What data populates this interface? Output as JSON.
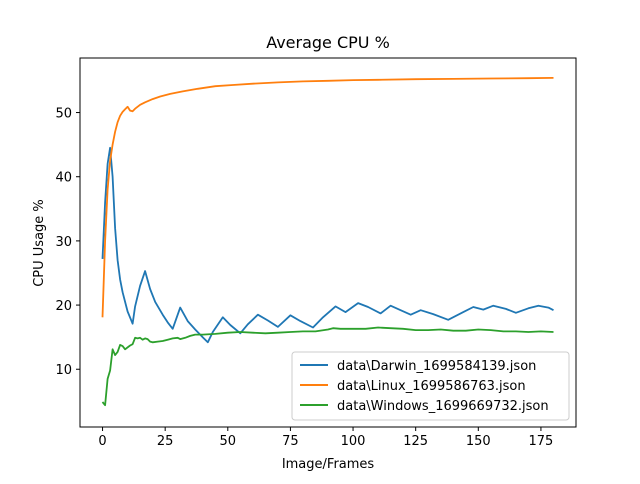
{
  "chart_data": {
    "type": "line",
    "title": "Average CPU %",
    "xlabel": "Image/Frames",
    "ylabel": "CPU Usage %",
    "xlim": [
      -9,
      189
    ],
    "ylim": [
      1.0,
      58.5
    ],
    "xticks": [
      0,
      25,
      50,
      75,
      100,
      125,
      150,
      175
    ],
    "yticks": [
      10,
      20,
      30,
      40,
      50
    ],
    "legend_loc": "lower right",
    "series": [
      {
        "name": "data\\Darwin_1699584139.json",
        "color": "#1f77b4",
        "points": [
          [
            0,
            27.2
          ],
          [
            1,
            36
          ],
          [
            2,
            42
          ],
          [
            3,
            44.5
          ],
          [
            4,
            40
          ],
          [
            5,
            32
          ],
          [
            6,
            27
          ],
          [
            7,
            24
          ],
          [
            8,
            22
          ],
          [
            9,
            20.5
          ],
          [
            10,
            19
          ],
          [
            12,
            17.1
          ],
          [
            13,
            19.8
          ],
          [
            15,
            23
          ],
          [
            17,
            25.3
          ],
          [
            19,
            22.5
          ],
          [
            21,
            20.5
          ],
          [
            24,
            18.5
          ],
          [
            26,
            17.3
          ],
          [
            28,
            16.3
          ],
          [
            31,
            19.6
          ],
          [
            34,
            17.5
          ],
          [
            37,
            16.2
          ],
          [
            40,
            15
          ],
          [
            42,
            14.2
          ],
          [
            44,
            15.8
          ],
          [
            48,
            18.1
          ],
          [
            51,
            16.9
          ],
          [
            55,
            15.6
          ],
          [
            58,
            17
          ],
          [
            62,
            18.5
          ],
          [
            66,
            17.6
          ],
          [
            70,
            16.6
          ],
          [
            75,
            18.4
          ],
          [
            79,
            17.5
          ],
          [
            84,
            16.5
          ],
          [
            88,
            18.1
          ],
          [
            93,
            19.8
          ],
          [
            97,
            18.9
          ],
          [
            102,
            20.3
          ],
          [
            106,
            19.7
          ],
          [
            111,
            18.7
          ],
          [
            115,
            19.9
          ],
          [
            119,
            19.2
          ],
          [
            123,
            18.5
          ],
          [
            127,
            19.2
          ],
          [
            132,
            18.6
          ],
          [
            138,
            17.7
          ],
          [
            144,
            18.9
          ],
          [
            148,
            19.7
          ],
          [
            152,
            19.3
          ],
          [
            156,
            19.9
          ],
          [
            161,
            19.4
          ],
          [
            165,
            18.8
          ],
          [
            170,
            19.5
          ],
          [
            174,
            19.9
          ],
          [
            178,
            19.6
          ],
          [
            180,
            19.2
          ]
        ]
      },
      {
        "name": "data\\Linux_1699586763.json",
        "color": "#ff7f0e",
        "points": [
          [
            0,
            18.1
          ],
          [
            1,
            30
          ],
          [
            2,
            38
          ],
          [
            3,
            42.5
          ],
          [
            4,
            45
          ],
          [
            5,
            47
          ],
          [
            6,
            48.5
          ],
          [
            7,
            49.5
          ],
          [
            8,
            50.1
          ],
          [
            9,
            50.5
          ],
          [
            10,
            50.9
          ],
          [
            11,
            50.3
          ],
          [
            12,
            50.2
          ],
          [
            13,
            50.6
          ],
          [
            15,
            51.2
          ],
          [
            17,
            51.6
          ],
          [
            20,
            52.1
          ],
          [
            23,
            52.5
          ],
          [
            27,
            52.9
          ],
          [
            32,
            53.3
          ],
          [
            38,
            53.7
          ],
          [
            45,
            54.1
          ],
          [
            52,
            54.3
          ],
          [
            60,
            54.5
          ],
          [
            70,
            54.7
          ],
          [
            80,
            54.85
          ],
          [
            90,
            54.95
          ],
          [
            100,
            55.05
          ],
          [
            110,
            55.1
          ],
          [
            125,
            55.2
          ],
          [
            140,
            55.25
          ],
          [
            155,
            55.3
          ],
          [
            170,
            55.35
          ],
          [
            180,
            55.4
          ]
        ]
      },
      {
        "name": "data\\Windows_1699669732.json",
        "color": "#2ca02c",
        "points": [
          [
            0,
            4.9
          ],
          [
            1,
            4.4
          ],
          [
            2,
            8.5
          ],
          [
            3,
            9.8
          ],
          [
            4,
            13.1
          ],
          [
            5,
            12.2
          ],
          [
            6,
            12.7
          ],
          [
            7,
            13.8
          ],
          [
            8,
            13.6
          ],
          [
            9,
            13.1
          ],
          [
            10,
            13.4
          ],
          [
            11,
            13.7
          ],
          [
            12,
            13.9
          ],
          [
            13,
            14.9
          ],
          [
            14,
            14.8
          ],
          [
            15,
            14.9
          ],
          [
            16,
            14.6
          ],
          [
            17,
            14.8
          ],
          [
            18,
            14.7
          ],
          [
            19,
            14.3
          ],
          [
            20,
            14.2
          ],
          [
            22,
            14.3
          ],
          [
            24,
            14.4
          ],
          [
            26,
            14.6
          ],
          [
            28,
            14.8
          ],
          [
            30,
            14.9
          ],
          [
            31,
            14.7
          ],
          [
            33,
            14.9
          ],
          [
            35,
            15.2
          ],
          [
            37,
            15.4
          ],
          [
            40,
            15.4
          ],
          [
            45,
            15.5
          ],
          [
            50,
            15.7
          ],
          [
            55,
            15.8
          ],
          [
            60,
            15.7
          ],
          [
            65,
            15.6
          ],
          [
            70,
            15.7
          ],
          [
            75,
            15.8
          ],
          [
            80,
            15.9
          ],
          [
            85,
            15.9
          ],
          [
            90,
            16.2
          ],
          [
            92,
            16.4
          ],
          [
            95,
            16.3
          ],
          [
            100,
            16.3
          ],
          [
            105,
            16.3
          ],
          [
            110,
            16.5
          ],
          [
            115,
            16.4
          ],
          [
            120,
            16.3
          ],
          [
            125,
            16.1
          ],
          [
            130,
            16.1
          ],
          [
            135,
            16.2
          ],
          [
            140,
            16.0
          ],
          [
            145,
            16.0
          ],
          [
            150,
            16.2
          ],
          [
            155,
            16.1
          ],
          [
            160,
            15.9
          ],
          [
            165,
            15.9
          ],
          [
            170,
            15.8
          ],
          [
            175,
            15.9
          ],
          [
            180,
            15.8
          ]
        ]
      }
    ]
  }
}
